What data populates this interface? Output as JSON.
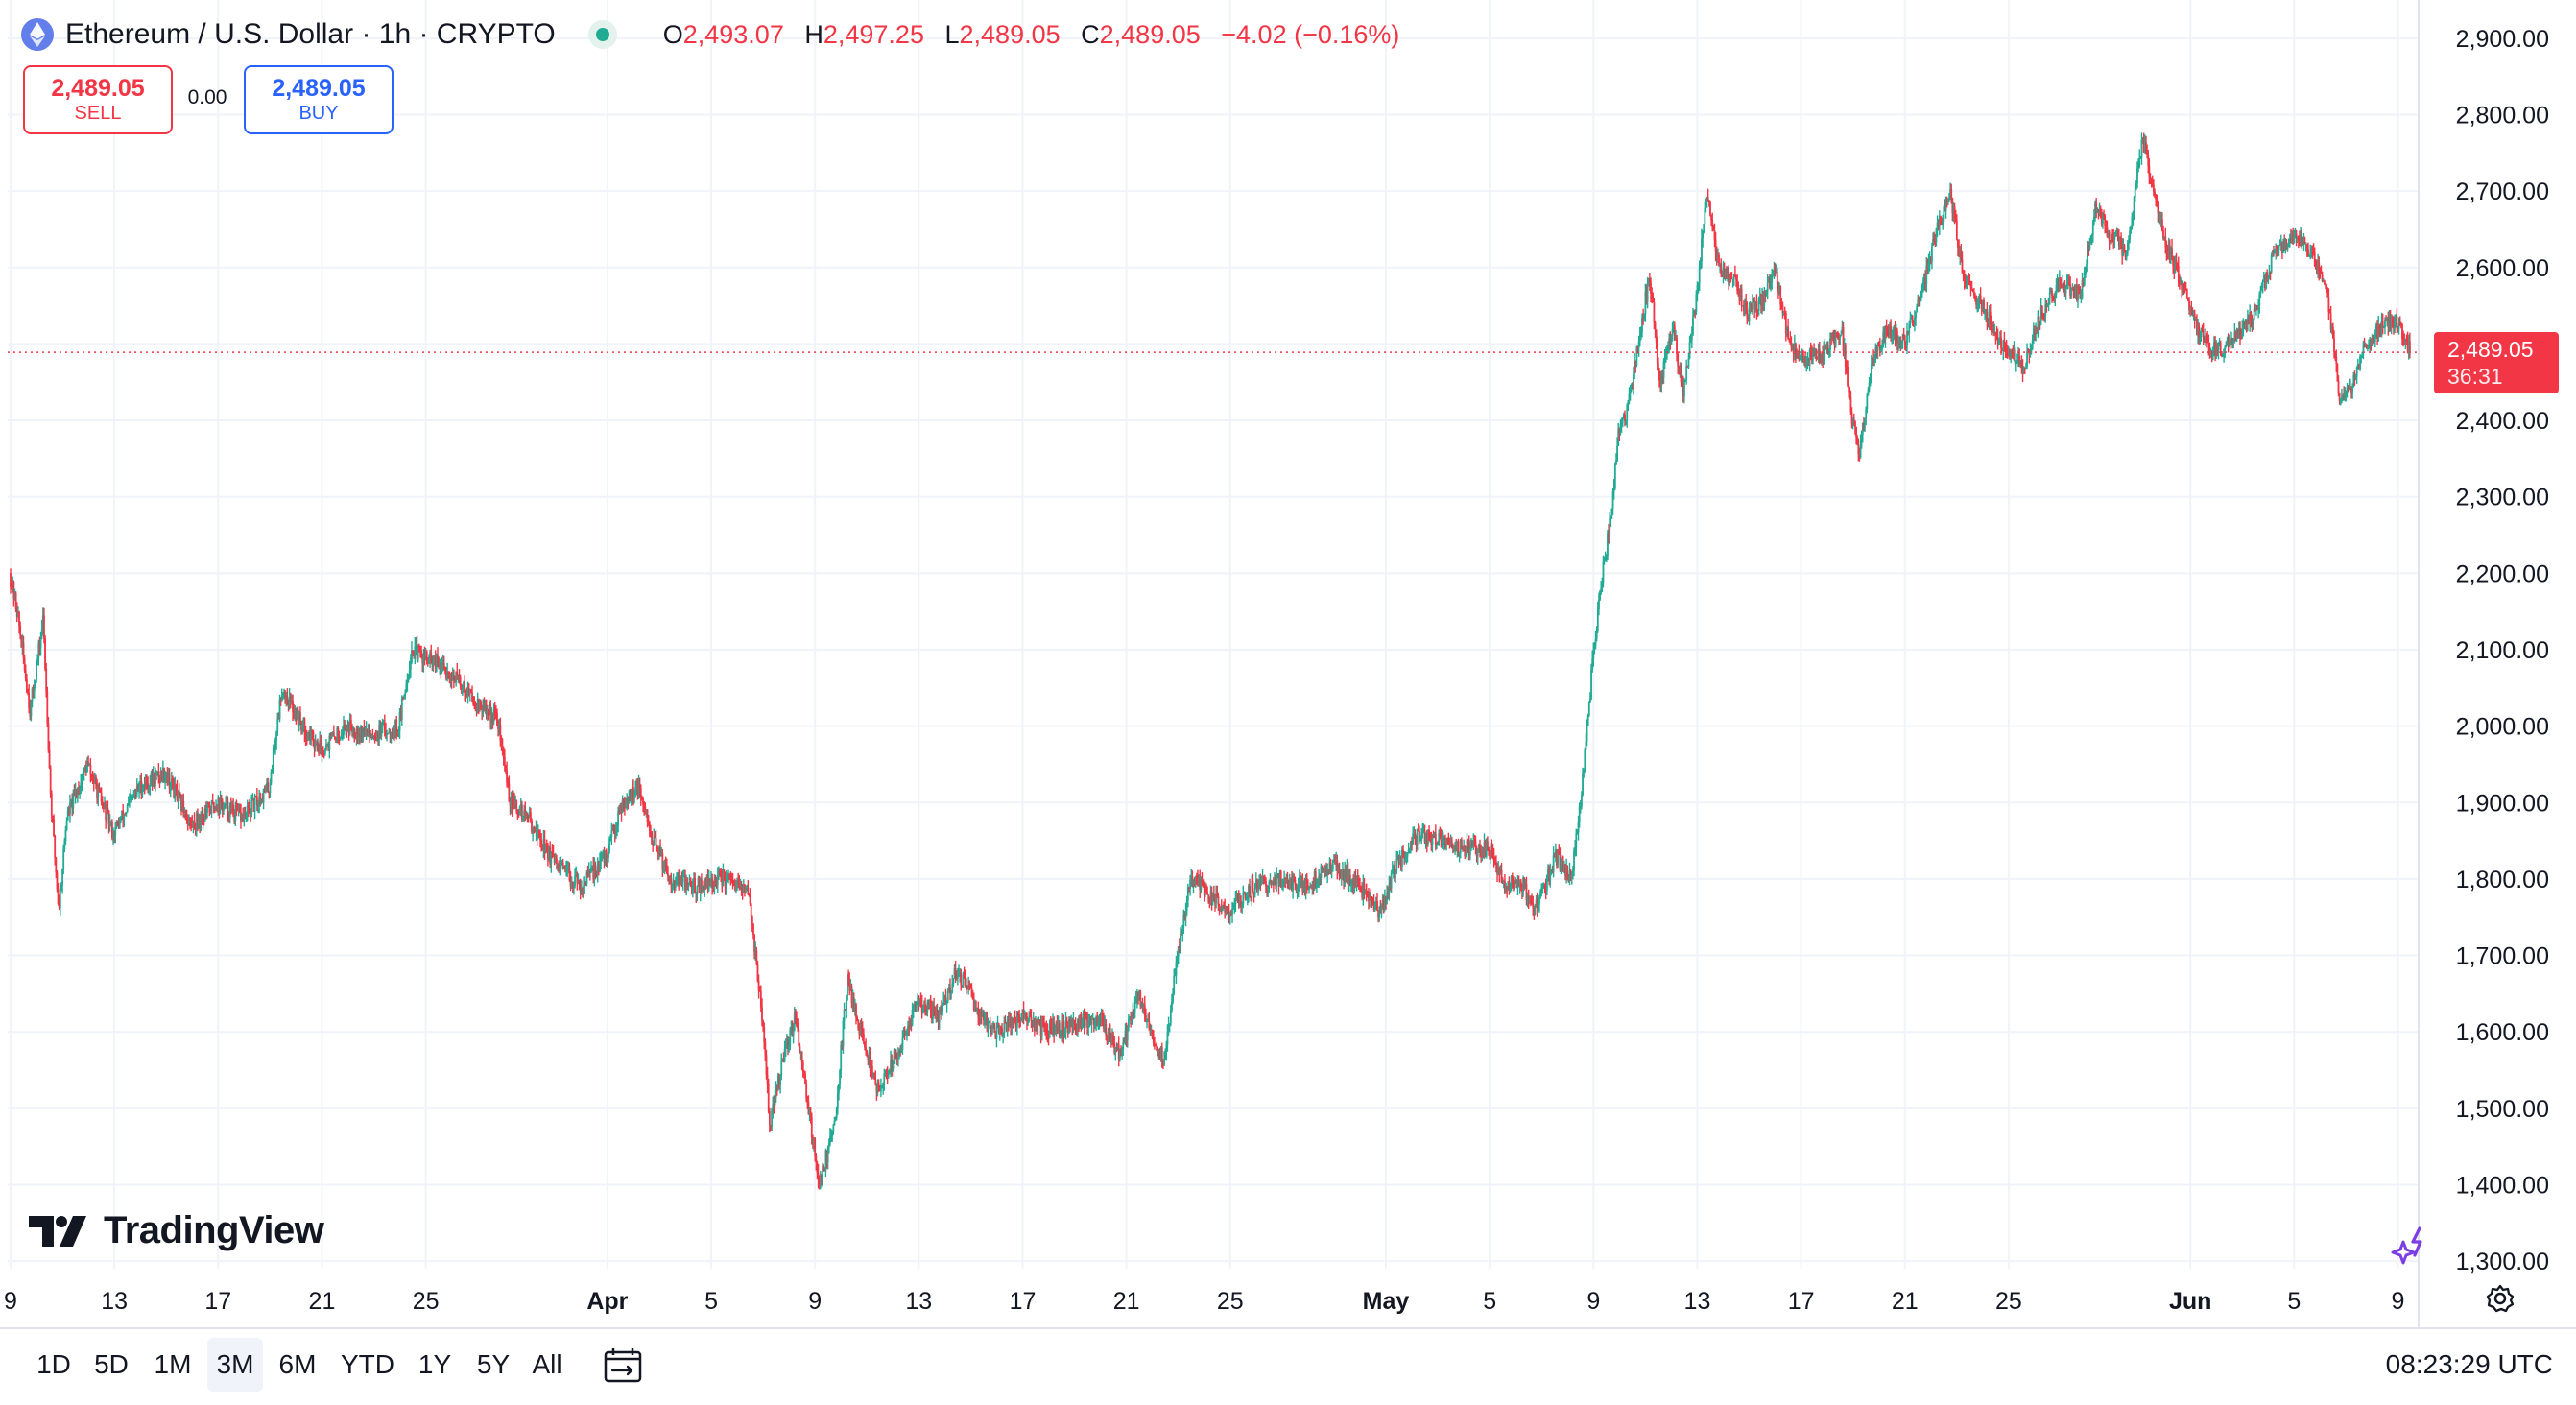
{
  "header": {
    "symbol": "Ethereum / U.S. Dollar · 1h · CRYPTO",
    "ohlc": {
      "o_label": "O",
      "o": "2,493.07",
      "h_label": "H",
      "h": "2,497.25",
      "l_label": "L",
      "l": "2,489.05",
      "c_label": "C",
      "c": "2,489.05",
      "change": "−4.02 (−0.16%)"
    }
  },
  "trade": {
    "sell_price": "2,489.05",
    "sell_label": "SELL",
    "spread": "0.00",
    "buy_price": "2,489.05",
    "buy_label": "BUY"
  },
  "brand": {
    "name": "TradingView"
  },
  "price_tag": {
    "price": "2,489.05",
    "countdown": "36:31"
  },
  "timeframes": [
    "1D",
    "5D",
    "1M",
    "3M",
    "6M",
    "YTD",
    "1Y",
    "5Y",
    "All"
  ],
  "active_timeframe": "3M",
  "clock": "08:23:29 UTC",
  "icons": {
    "eth": "ethereum-icon",
    "date_range": "calendar-range-icon",
    "ai": "sparkle-icon",
    "settings": "gear-icon"
  },
  "colors": {
    "up": "#22ab94",
    "down": "#f23645",
    "grid": "#f0f3fa",
    "text": "#131722"
  },
  "chart_data": {
    "type": "candlestick",
    "interval": "1h",
    "ylim": [
      1260,
      2950
    ],
    "yticks": [
      1300,
      1400,
      1500,
      1600,
      1700,
      1800,
      1900,
      2000,
      2100,
      2200,
      2300,
      2400,
      2500,
      2600,
      2700,
      2800,
      2900
    ],
    "ytick_labels": [
      "1,300.00",
      "1,400.00",
      "1,500.00",
      "1,600.00",
      "1,700.00",
      "1,800.00",
      "1,900.00",
      "2,000.00",
      "2,100.00",
      "2,200.00",
      "2,300.00",
      "2,400.00",
      "",
      "2,600.00",
      "2,700.00",
      "2,800.00",
      "2,900.00"
    ],
    "xrange_days": [
      0,
      92.5
    ],
    "xticks": [
      {
        "day": 0,
        "label": "9"
      },
      {
        "day": 4,
        "label": "13"
      },
      {
        "day": 8,
        "label": "17"
      },
      {
        "day": 12,
        "label": "21"
      },
      {
        "day": 16,
        "label": "25"
      },
      {
        "day": 23,
        "label": "Apr"
      },
      {
        "day": 27,
        "label": "5"
      },
      {
        "day": 31,
        "label": "9"
      },
      {
        "day": 35,
        "label": "13"
      },
      {
        "day": 39,
        "label": "17"
      },
      {
        "day": 43,
        "label": "21"
      },
      {
        "day": 47,
        "label": "25"
      },
      {
        "day": 53,
        "label": "May"
      },
      {
        "day": 57,
        "label": "5"
      },
      {
        "day": 61,
        "label": "9"
      },
      {
        "day": 65,
        "label": "13"
      },
      {
        "day": 69,
        "label": "17"
      },
      {
        "day": 73,
        "label": "21"
      },
      {
        "day": 77,
        "label": "25"
      },
      {
        "day": 84,
        "label": "Jun"
      },
      {
        "day": 88,
        "label": "5"
      },
      {
        "day": 92,
        "label": "9"
      }
    ],
    "last_price": 2489.05,
    "price_path": [
      [
        0,
        2200
      ],
      [
        0.3,
        2150
      ],
      [
        0.8,
        2020
      ],
      [
        1.3,
        2140
      ],
      [
        1.6,
        1900
      ],
      [
        1.9,
        1760
      ],
      [
        2.2,
        1880
      ],
      [
        3,
        1950
      ],
      [
        4,
        1860
      ],
      [
        5,
        1920
      ],
      [
        6,
        1940
      ],
      [
        7,
        1870
      ],
      [
        8,
        1900
      ],
      [
        9,
        1880
      ],
      [
        10,
        1920
      ],
      [
        10.5,
        2050
      ],
      [
        11.3,
        2000
      ],
      [
        12,
        1970
      ],
      [
        13,
        2000
      ],
      [
        14,
        1990
      ],
      [
        15,
        2000
      ],
      [
        15.5,
        2100
      ],
      [
        16.5,
        2080
      ],
      [
        17.3,
        2060
      ],
      [
        18,
        2030
      ],
      [
        18.8,
        2010
      ],
      [
        19.3,
        1900
      ],
      [
        20,
        1880
      ],
      [
        21,
        1820
      ],
      [
        22,
        1790
      ],
      [
        23,
        1830
      ],
      [
        23.6,
        1900
      ],
      [
        24.2,
        1920
      ],
      [
        24.8,
        1850
      ],
      [
        25.5,
        1800
      ],
      [
        26.5,
        1790
      ],
      [
        27.5,
        1800
      ],
      [
        28.5,
        1780
      ],
      [
        29,
        1620
      ],
      [
        29.3,
        1480
      ],
      [
        29.8,
        1560
      ],
      [
        30.3,
        1620
      ],
      [
        30.8,
        1500
      ],
      [
        31.2,
        1400
      ],
      [
        31.8,
        1480
      ],
      [
        32.3,
        1670
      ],
      [
        32.8,
        1600
      ],
      [
        33.5,
        1520
      ],
      [
        34.3,
        1580
      ],
      [
        35,
        1640
      ],
      [
        35.8,
        1620
      ],
      [
        36.5,
        1680
      ],
      [
        37.3,
        1630
      ],
      [
        38,
        1600
      ],
      [
        39,
        1620
      ],
      [
        40,
        1600
      ],
      [
        41,
        1610
      ],
      [
        42,
        1620
      ],
      [
        42.8,
        1570
      ],
      [
        43.5,
        1650
      ],
      [
        44,
        1600
      ],
      [
        44.5,
        1560
      ],
      [
        45,
        1700
      ],
      [
        45.5,
        1800
      ],
      [
        46.2,
        1780
      ],
      [
        47,
        1760
      ],
      [
        48,
        1790
      ],
      [
        49,
        1800
      ],
      [
        50,
        1790
      ],
      [
        51,
        1820
      ],
      [
        52,
        1790
      ],
      [
        52.8,
        1760
      ],
      [
        53.5,
        1820
      ],
      [
        54.3,
        1860
      ],
      [
        55,
        1850
      ],
      [
        56,
        1840
      ],
      [
        57,
        1840
      ],
      [
        57.6,
        1790
      ],
      [
        58.2,
        1800
      ],
      [
        58.8,
        1760
      ],
      [
        59.6,
        1830
      ],
      [
        60.2,
        1800
      ],
      [
        60.6,
        1920
      ],
      [
        61,
        2080
      ],
      [
        61.4,
        2200
      ],
      [
        61.7,
        2270
      ],
      [
        62,
        2380
      ],
      [
        62.4,
        2420
      ],
      [
        62.8,
        2510
      ],
      [
        63.2,
        2590
      ],
      [
        63.6,
        2450
      ],
      [
        64.1,
        2520
      ],
      [
        64.5,
        2440
      ],
      [
        65,
        2560
      ],
      [
        65.4,
        2700
      ],
      [
        65.9,
        2600
      ],
      [
        66.5,
        2580
      ],
      [
        67,
        2540
      ],
      [
        67.6,
        2560
      ],
      [
        68,
        2600
      ],
      [
        68.6,
        2500
      ],
      [
        69.3,
        2480
      ],
      [
        70,
        2490
      ],
      [
        70.6,
        2520
      ],
      [
        71,
        2400
      ],
      [
        71.3,
        2360
      ],
      [
        71.8,
        2480
      ],
      [
        72.4,
        2520
      ],
      [
        73,
        2500
      ],
      [
        73.7,
        2570
      ],
      [
        74.2,
        2640
      ],
      [
        74.8,
        2700
      ],
      [
        75.3,
        2580
      ],
      [
        76,
        2550
      ],
      [
        76.8,
        2500
      ],
      [
        77.6,
        2470
      ],
      [
        78.3,
        2540
      ],
      [
        79,
        2580
      ],
      [
        79.8,
        2560
      ],
      [
        80.4,
        2680
      ],
      [
        81,
        2640
      ],
      [
        81.6,
        2620
      ],
      [
        82.2,
        2770
      ],
      [
        82.6,
        2700
      ],
      [
        83,
        2640
      ],
      [
        83.7,
        2580
      ],
      [
        84.3,
        2520
      ],
      [
        85,
        2490
      ],
      [
        85.8,
        2510
      ],
      [
        86.5,
        2540
      ],
      [
        87.3,
        2620
      ],
      [
        88,
        2640
      ],
      [
        88.7,
        2620
      ],
      [
        89.2,
        2580
      ],
      [
        89.5,
        2520
      ],
      [
        89.8,
        2420
      ],
      [
        90.2,
        2440
      ],
      [
        90.7,
        2490
      ],
      [
        91.3,
        2520
      ],
      [
        92,
        2530
      ],
      [
        92.5,
        2489
      ]
    ]
  }
}
